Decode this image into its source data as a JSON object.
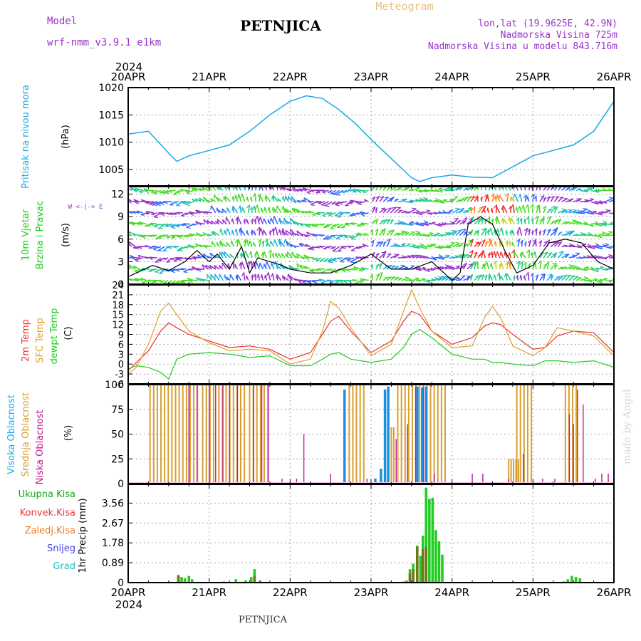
{
  "header": {
    "model_label": "Model",
    "model_name": "wrf-nmm_v3.9.1  e1km",
    "station": "PETNJICA",
    "meteogram": "Meteogram",
    "lonlat": "lon,lat (19.9625E, 42.9N)",
    "altitude": "Nadmorska Visina 725m",
    "model_altitude": "Nadmorska Visina u modelu 843.716m",
    "year": "2024",
    "footer_station": "PETNJICA",
    "credit": "made by Angel"
  },
  "colors": {
    "pressure": "#1aa7e8",
    "temp": "#ee3333",
    "sfc_temp": "#e0a030",
    "dewpoint": "#22cc22",
    "high_cloud": "#1a90e0",
    "mid_cloud": "#d8a030",
    "low_cloud": "#c01890",
    "total_precip": "#22cc22",
    "conv_precip": "#ee3333",
    "strat_precip": "#f07820",
    "snow": "#4444dd",
    "graupel": "#22bbbb",
    "wind_violet": "#9933cc",
    "total_precip_label": "#11aa11"
  },
  "chart_data": [
    {
      "type": "line",
      "panel": "pressure",
      "ylabel": "Pritisak na nivou mora",
      "unit": "(hPa)",
      "ylim": [
        1002,
        1020
      ],
      "yticks": [
        1005,
        1010,
        1015,
        1020
      ],
      "x_days": [
        0.0,
        0.25,
        0.5,
        0.6,
        0.75,
        1.0,
        1.25,
        1.5,
        1.75,
        2.0,
        2.2,
        2.4,
        2.6,
        2.8,
        3.0,
        3.25,
        3.5,
        3.6,
        3.75,
        4.0,
        4.25,
        4.5,
        4.75,
        5.0,
        5.25,
        5.5,
        5.75,
        6.0
      ],
      "values": [
        1011.5,
        1012.0,
        1008.0,
        1006.5,
        1007.5,
        1008.5,
        1009.5,
        1012.0,
        1015.0,
        1017.5,
        1018.5,
        1018.0,
        1016.0,
        1013.5,
        1010.5,
        1007.0,
        1003.5,
        1002.8,
        1003.5,
        1004.0,
        1003.6,
        1003.5,
        1005.5,
        1007.5,
        1008.5,
        1009.5,
        1012.0,
        1017.5
      ]
    },
    {
      "type": "line",
      "panel": "wind",
      "ylabel": [
        "10m Vjetar",
        "Brzina i Pravac"
      ],
      "unit": "(m/s)",
      "compass": "W <-|-> E",
      "ylim": [
        0,
        13
      ],
      "yticks": [
        0,
        3,
        6,
        9,
        12
      ],
      "x_days": [
        0.0,
        0.1,
        0.3,
        0.5,
        0.7,
        0.85,
        1.0,
        1.1,
        1.25,
        1.4,
        1.5,
        1.6,
        1.75,
        1.9,
        2.0,
        2.25,
        2.5,
        2.75,
        3.0,
        3.25,
        3.5,
        3.75,
        4.0,
        4.1,
        4.2,
        4.35,
        4.5,
        4.65,
        4.8,
        5.0,
        5.2,
        5.4,
        5.6,
        5.8,
        6.0
      ],
      "values": [
        1.0,
        1.5,
        2.5,
        1.8,
        3.0,
        4.5,
        3.0,
        4.0,
        2.0,
        5.0,
        1.5,
        3.5,
        3.0,
        2.5,
        2.0,
        1.5,
        1.5,
        2.5,
        4.0,
        2.0,
        2.0,
        3.0,
        0.5,
        1.5,
        8.0,
        9.0,
        8.0,
        4.5,
        1.5,
        2.5,
        5.5,
        6.0,
        5.5,
        3.0,
        2.0
      ]
    },
    {
      "type": "line",
      "panel": "temperature",
      "ylabels": [
        "2m Temp",
        "SFC Temp",
        "dewpt Temp"
      ],
      "unit": "(C)",
      "ylim": [
        -6,
        24
      ],
      "yticks": [
        -6,
        -3,
        0,
        3,
        6,
        9,
        12,
        15,
        18,
        21,
        24
      ],
      "x_days": [
        0.0,
        0.1,
        0.25,
        0.4,
        0.5,
        0.6,
        0.75,
        1.0,
        1.25,
        1.5,
        1.75,
        2.0,
        2.25,
        2.4,
        2.5,
        2.6,
        2.75,
        3.0,
        3.25,
        3.4,
        3.5,
        3.6,
        3.75,
        4.0,
        4.25,
        4.4,
        4.5,
        4.6,
        4.75,
        5.0,
        5.15,
        5.3,
        5.5,
        5.75,
        6.0
      ],
      "series": [
        {
          "name": "2m Temp",
          "values": [
            -2.0,
            0.5,
            4.0,
            10.0,
            12.5,
            11.0,
            9.0,
            7.0,
            5.0,
            5.5,
            4.5,
            1.5,
            3.5,
            9.0,
            13.0,
            14.5,
            10.0,
            3.5,
            7.0,
            13.0,
            16.0,
            15.0,
            10.0,
            6.0,
            8.0,
            11.5,
            12.5,
            12.0,
            9.0,
            4.5,
            5.0,
            8.5,
            10.0,
            9.5,
            3.5
          ]
        },
        {
          "name": "SFC Temp",
          "values": [
            -3.0,
            -1.0,
            6.0,
            16.0,
            18.5,
            15.0,
            10.0,
            6.5,
            4.0,
            4.5,
            4.0,
            0.0,
            1.5,
            10.0,
            19.0,
            17.0,
            11.0,
            2.5,
            6.0,
            16.0,
            22.5,
            17.0,
            10.0,
            5.0,
            5.5,
            14.0,
            17.5,
            14.0,
            5.5,
            2.5,
            5.0,
            11.0,
            10.0,
            8.5,
            2.5
          ]
        },
        {
          "name": "dewpt Temp",
          "values": [
            -1.5,
            -0.5,
            -1.0,
            -2.5,
            -4.5,
            1.5,
            3.0,
            3.5,
            3.0,
            2.0,
            2.5,
            -0.5,
            -0.5,
            1.5,
            3.0,
            3.5,
            1.5,
            0.5,
            1.5,
            5.0,
            9.0,
            10.5,
            8.0,
            3.0,
            1.5,
            1.5,
            0.5,
            0.5,
            0.0,
            -0.5,
            1.0,
            1.0,
            0.5,
            1.0,
            -1.0
          ]
        }
      ]
    },
    {
      "type": "bar",
      "panel": "clouds",
      "ylabels": [
        "Visoka Oblacnost",
        "Srednja Oblacnost",
        "Niska Oblacnost"
      ],
      "unit": "(%)",
      "ylim": [
        0,
        100
      ],
      "yticks": [
        0,
        25,
        50,
        75,
        100
      ],
      "series": [
        {
          "name": "Visoka Oblacnost",
          "bars": [
            [
              2.67,
              95
            ],
            [
              3.05,
              5
            ],
            [
              3.12,
              15
            ],
            [
              3.17,
              95
            ],
            [
              3.21,
              98
            ],
            [
              3.57,
              98
            ],
            [
              3.63,
              97
            ],
            [
              3.68,
              98
            ]
          ]
        },
        {
          "name": "Srednja Oblacnost",
          "ranges": [
            [
              0.27,
              0.87,
              100,
              0.045
            ],
            [
              0.92,
              1.08,
              100,
              0.045
            ],
            [
              1.12,
              1.45,
              100,
              0.045
            ],
            [
              1.5,
              1.75,
              100,
              0.045
            ],
            [
              2.73,
              2.95,
              100,
              0.045
            ],
            [
              3.25,
              3.28,
              57,
              0.03
            ],
            [
              3.33,
              3.95,
              100,
              0.045
            ],
            [
              4.7,
              4.82,
              25,
              0.03
            ],
            [
              4.8,
              5.0,
              100,
              0.045
            ],
            [
              5.4,
              5.55,
              100,
              0.045
            ]
          ]
        },
        {
          "name": "Niska Oblacnost",
          "bars": [
            [
              0.75,
              100
            ],
            [
              0.85,
              100
            ],
            [
              1.0,
              100
            ],
            [
              1.08,
              100
            ],
            [
              1.17,
              100
            ],
            [
              1.25,
              100
            ],
            [
              1.35,
              100
            ],
            [
              1.55,
              100
            ],
            [
              1.65,
              100
            ],
            [
              1.73,
              100
            ],
            [
              1.9,
              5
            ],
            [
              2.08,
              5
            ],
            [
              2.17,
              50
            ],
            [
              2.5,
              10
            ],
            [
              2.95,
              5
            ],
            [
              3.31,
              45
            ],
            [
              3.45,
              60
            ],
            [
              3.55,
              98
            ],
            [
              3.65,
              98
            ],
            [
              3.78,
              10
            ],
            [
              4.25,
              10
            ],
            [
              4.38,
              10
            ],
            [
              4.7,
              5
            ],
            [
              4.88,
              30
            ],
            [
              5.12,
              5
            ],
            [
              5.27,
              5
            ],
            [
              5.45,
              70
            ],
            [
              5.5,
              60
            ],
            [
              5.55,
              95
            ],
            [
              5.62,
              80
            ],
            [
              5.77,
              5
            ],
            [
              5.85,
              10
            ],
            [
              5.93,
              10
            ]
          ]
        }
      ]
    },
    {
      "type": "bar",
      "panel": "precipitation",
      "ylabels": [
        "Ukupna Kisa",
        "Konvek.Kisa",
        "Zaledj.Kisa",
        "Snijeg",
        "Grad"
      ],
      "unit": "1hr Precip (mm)",
      "ylim": [
        0,
        4.4
      ],
      "yticks": [
        "0",
        "0.89",
        "1.78",
        "2.67",
        "3.56"
      ],
      "x_tick_labels": [
        "20APR",
        "21APR",
        "22APR",
        "23APR",
        "24APR",
        "25APR",
        "26APR"
      ],
      "series": [
        {
          "name": "Ukupna Kisa",
          "bars": [
            [
              0.62,
              0.35
            ],
            [
              0.66,
              0.25
            ],
            [
              0.7,
              0.2
            ],
            [
              0.75,
              0.3
            ],
            [
              0.79,
              0.15
            ],
            [
              1.18,
              0.05
            ],
            [
              1.33,
              0.15
            ],
            [
              1.45,
              0.1
            ],
            [
              1.52,
              0.25
            ],
            [
              1.56,
              0.6
            ],
            [
              1.63,
              0.1
            ],
            [
              3.4,
              0.05
            ],
            [
              3.44,
              0.1
            ],
            [
              3.48,
              0.6
            ],
            [
              3.52,
              0.85
            ],
            [
              3.57,
              1.65
            ],
            [
              3.61,
              1.2
            ],
            [
              3.64,
              2.1
            ],
            [
              3.68,
              4.25
            ],
            [
              3.72,
              3.75
            ],
            [
              3.76,
              3.8
            ],
            [
              3.8,
              2.35
            ],
            [
              3.84,
              1.85
            ],
            [
              3.88,
              1.25
            ],
            [
              5.38,
              0.05
            ],
            [
              5.43,
              0.15
            ],
            [
              5.48,
              0.3
            ],
            [
              5.53,
              0.25
            ],
            [
              5.58,
              0.2
            ]
          ]
        },
        {
          "name": "Konvek.Kisa",
          "bars": [
            [
              0.62,
              0.3
            ],
            [
              1.56,
              0.3
            ],
            [
              3.48,
              0.4
            ],
            [
              3.52,
              0.6
            ],
            [
              3.57,
              1.6
            ],
            [
              3.64,
              1.5
            ],
            [
              3.68,
              1.6
            ]
          ]
        }
      ]
    }
  ]
}
